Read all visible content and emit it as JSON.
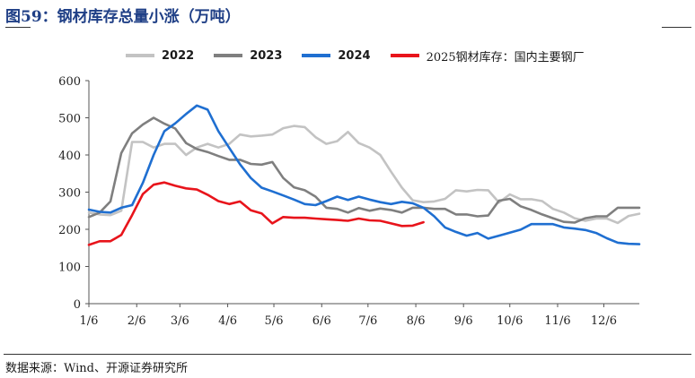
{
  "title": "图59：钢材库存总量小涨（万吨）",
  "source": "数据来源：Wind、开源证券研究所",
  "chart_data": {
    "type": "line",
    "ylim": [
      0,
      600
    ],
    "yticks": [
      0,
      100,
      200,
      300,
      400,
      500,
      600
    ],
    "xlim": [
      0,
      51
    ],
    "xtick_labels": [
      "1/6",
      "2/6",
      "3/6",
      "4/6",
      "5/6",
      "6/6",
      "7/6",
      "8/6",
      "9/6",
      "10/6",
      "11/6",
      "12/6"
    ],
    "xtick_weeks": [
      0,
      4.43,
      8.43,
      12.86,
      17.14,
      21.57,
      25.86,
      30.29,
      34.71,
      39,
      43.43,
      47.71
    ],
    "grid": false,
    "legend_position": "top",
    "series": [
      {
        "name": "2022",
        "color": "#c3c3c3",
        "x": [
          0,
          1,
          2,
          3,
          4,
          5,
          6,
          7,
          8,
          9,
          10,
          11,
          12,
          13,
          14,
          15,
          16,
          17,
          18,
          19,
          20,
          21,
          22,
          23,
          24,
          25,
          26,
          27,
          28,
          29,
          30,
          31,
          32,
          33,
          34,
          35,
          36,
          37,
          38,
          39,
          40,
          41,
          42,
          43,
          44,
          45,
          46,
          47,
          48,
          49,
          50,
          51
        ],
        "values": [
          245,
          240,
          238,
          250,
          435,
          435,
          420,
          430,
          430,
          400,
          420,
          430,
          420,
          430,
          455,
          450,
          452,
          455,
          472,
          478,
          475,
          448,
          430,
          437,
          462,
          432,
          420,
          400,
          355,
          312,
          278,
          273,
          275,
          282,
          305,
          302,
          306,
          305,
          272,
          294,
          281,
          281,
          276,
          255,
          245,
          230,
          223,
          229,
          229,
          217,
          236,
          242
        ]
      },
      {
        "name": "2023",
        "color": "#7f7f7f",
        "x": [
          0,
          1,
          2,
          3,
          4,
          5,
          6,
          7,
          8,
          9,
          10,
          11,
          12,
          13,
          14,
          15,
          16,
          17,
          18,
          19,
          20,
          21,
          22,
          23,
          24,
          25,
          26,
          27,
          28,
          29,
          30,
          31,
          32,
          33,
          34,
          35,
          36,
          37,
          38,
          39,
          40,
          41,
          42,
          43,
          44,
          45,
          46,
          47,
          48,
          49,
          50,
          51
        ],
        "values": [
          233,
          245,
          275,
          405,
          458,
          482,
          500,
          484,
          471,
          432,
          416,
          408,
          397,
          387,
          387,
          376,
          374,
          381,
          338,
          313,
          305,
          288,
          258,
          255,
          245,
          257,
          250,
          256,
          252,
          245,
          258,
          258,
          255,
          255,
          240,
          240,
          235,
          237,
          277,
          282,
          262,
          252,
          240,
          230,
          220,
          218,
          230,
          235,
          235,
          258,
          258,
          258
        ]
      },
      {
        "name": "2024",
        "color": "#1f6fd1",
        "x": [
          0,
          1,
          2,
          3,
          4,
          5,
          6,
          7,
          8,
          9,
          10,
          11,
          12,
          13,
          14,
          15,
          16,
          17,
          18,
          19,
          20,
          21,
          22,
          23,
          24,
          25,
          26,
          27,
          28,
          29,
          30,
          31,
          32,
          33,
          34,
          35,
          36,
          37,
          38,
          39,
          40,
          41,
          42,
          43,
          44,
          45,
          46,
          47,
          48,
          49,
          50,
          51
        ],
        "values": [
          253,
          247,
          245,
          258,
          265,
          325,
          400,
          464,
          485,
          510,
          533,
          522,
          464,
          419,
          375,
          338,
          312,
          302,
          291,
          280,
          268,
          265,
          276,
          288,
          279,
          288,
          280,
          273,
          268,
          274,
          270,
          258,
          235,
          205,
          193,
          183,
          190,
          175,
          183,
          191,
          199,
          214,
          214,
          214,
          205,
          202,
          198,
          190,
          176,
          164,
          161,
          160
        ]
      },
      {
        "name": "2025钢材库存：国内主要钢厂",
        "color": "#e8141b",
        "x": [
          0,
          1,
          2,
          3,
          4,
          5,
          6,
          7,
          8,
          9,
          10,
          11,
          12,
          13,
          14,
          15,
          16,
          17,
          18,
          19,
          20,
          21,
          22,
          23,
          24,
          25,
          26,
          27,
          28,
          29,
          30,
          31
        ],
        "values": [
          158,
          168,
          168,
          185,
          238,
          295,
          320,
          326,
          317,
          310,
          307,
          293,
          276,
          268,
          275,
          251,
          243,
          216,
          233,
          231,
          231,
          229,
          227,
          225,
          223,
          229,
          224,
          223,
          216,
          209,
          210,
          219
        ]
      }
    ]
  }
}
